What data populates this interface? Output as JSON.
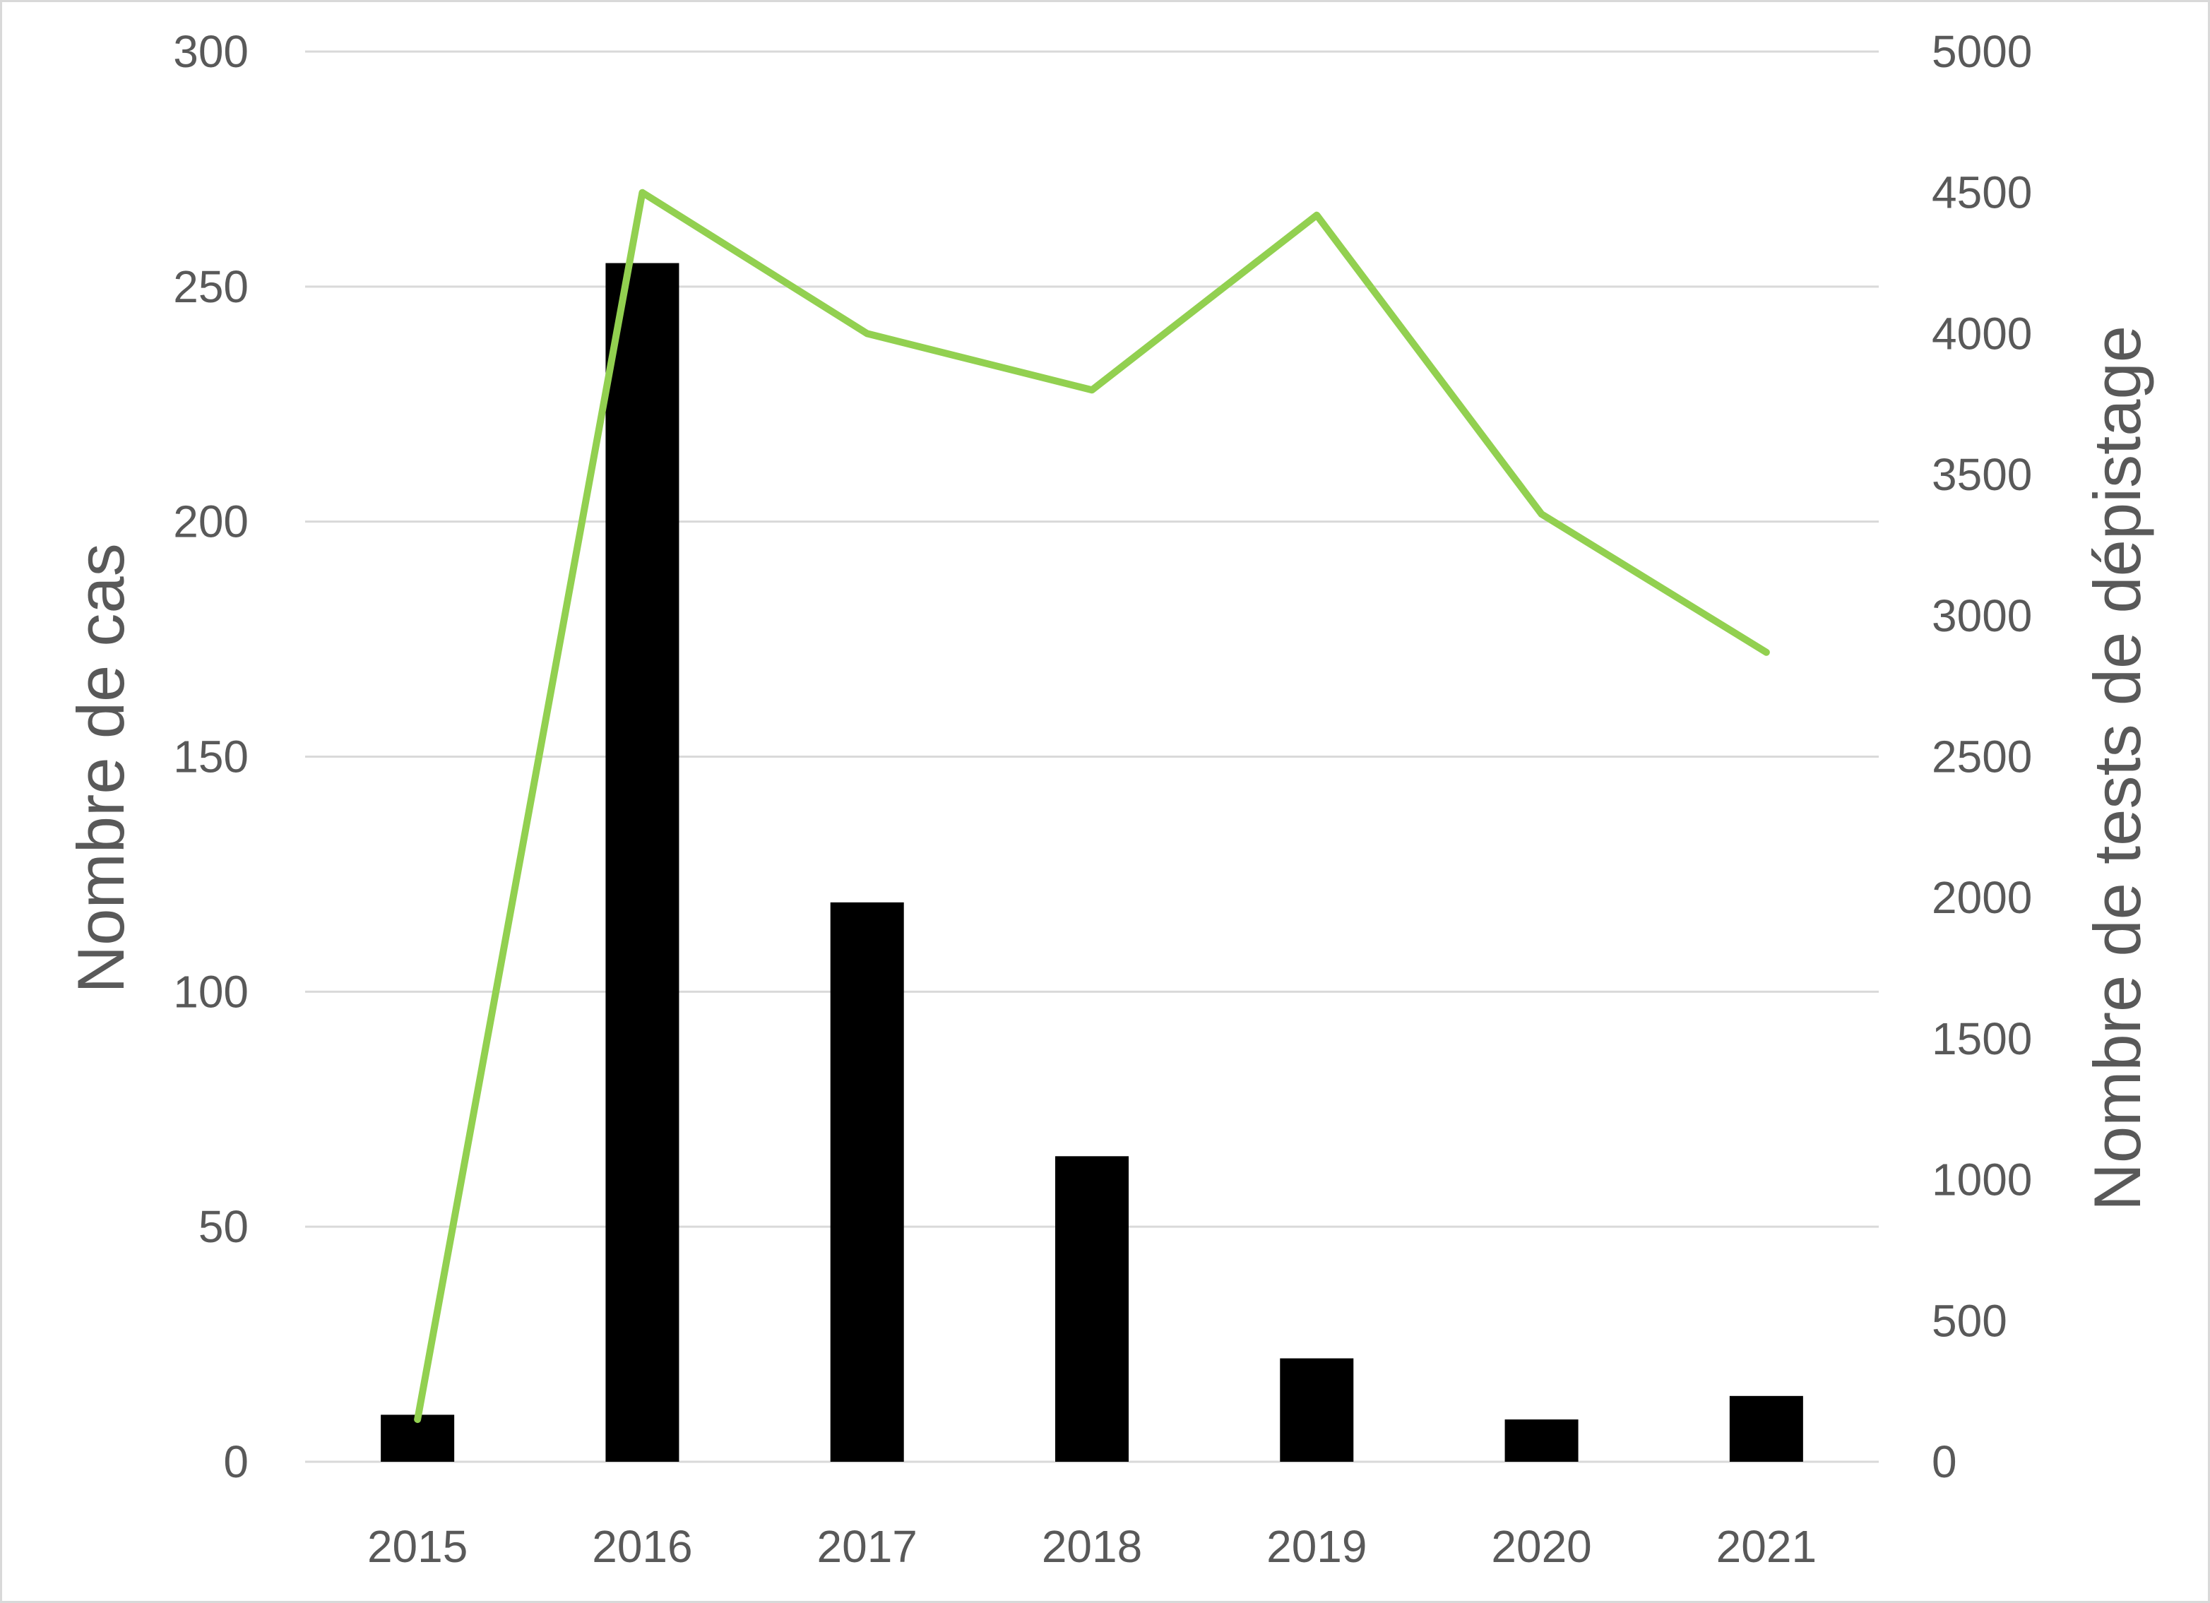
{
  "chart_data": {
    "type": "bar+line",
    "title": "",
    "categories": [
      "2015",
      "2016",
      "2017",
      "2018",
      "2019",
      "2020",
      "2021"
    ],
    "series": [
      {
        "axis": "left",
        "type": "bar",
        "values": [
          10,
          255,
          119,
          65,
          22,
          9,
          14
        ],
        "color": "#000000"
      },
      {
        "axis": "right",
        "type": "line",
        "values": [
          150,
          4500,
          4000,
          3800,
          4420,
          3360,
          2870
        ],
        "color": "#92d050"
      }
    ],
    "ylabel_left": "Nombre de cas",
    "ylabel_right": "Nombre de tests de dépistage",
    "ylim_left": [
      0,
      300
    ],
    "ylim_right": [
      0,
      5000
    ],
    "yticks_left": [
      "0",
      "50",
      "100",
      "150",
      "200",
      "250",
      "300"
    ],
    "yticks_right": [
      "0",
      "500",
      "1000",
      "1500",
      "2000",
      "2500",
      "3000",
      "3500",
      "4000",
      "4500",
      "5000"
    ],
    "grid": true,
    "gridline_color": "#d9d9d9",
    "text_color": "#595959"
  }
}
